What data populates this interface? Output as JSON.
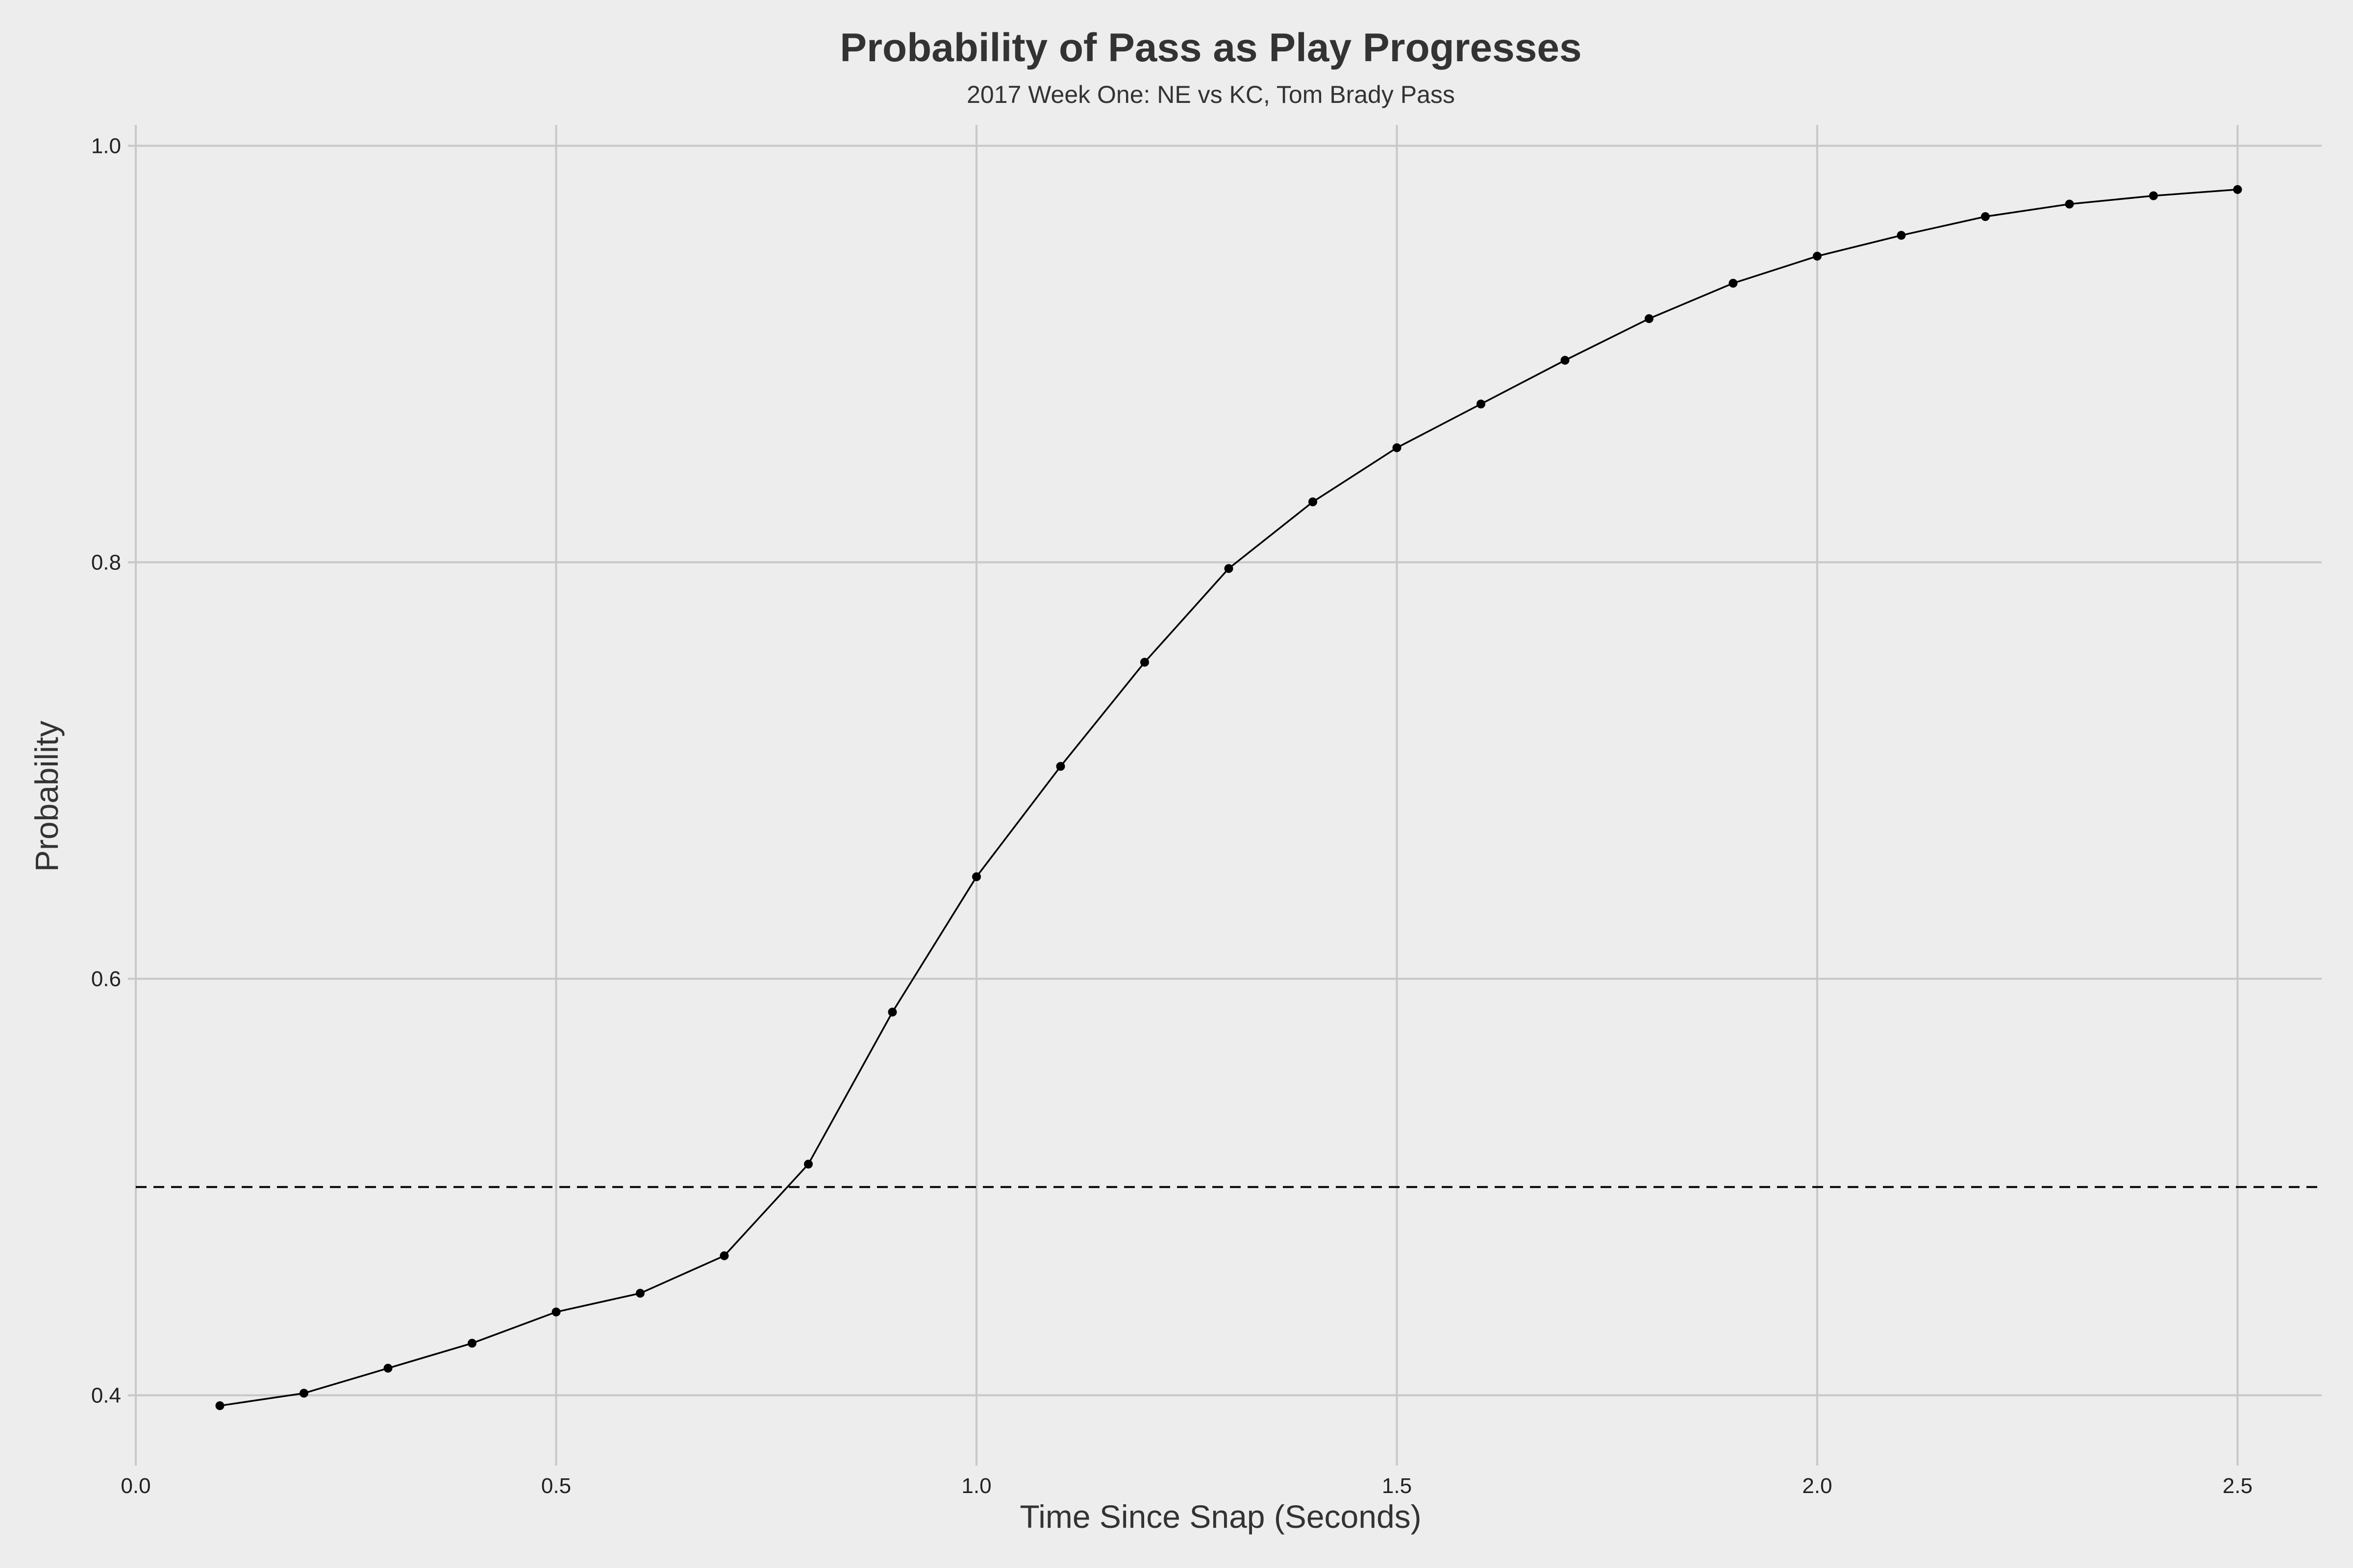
{
  "chart_data": {
    "type": "line",
    "title": "Probability of Pass as Play Progresses",
    "subtitle": "2017 Week One: NE vs KC, Tom Brady Pass",
    "xlabel": "Time Since Snap (Seconds)",
    "ylabel": "Probability",
    "xlim": [
      0.0,
      2.6
    ],
    "ylim": [
      0.37,
      1.01
    ],
    "x_ticks": [
      0.0,
      0.5,
      1.0,
      1.5,
      2.0,
      2.5
    ],
    "x_tick_labels": [
      "0.0",
      "0.5",
      "1.0",
      "1.5",
      "2.0",
      "2.5"
    ],
    "y_ticks": [
      0.4,
      0.6,
      0.8,
      1.0
    ],
    "y_tick_labels": [
      "0.4",
      "0.6",
      "0.8",
      "1.0"
    ],
    "grid": true,
    "reference_line": {
      "y": 0.5,
      "style": "dashed",
      "color": "#000000"
    },
    "series": [
      {
        "color": "#000000",
        "x": [
          0.1,
          0.2,
          0.3,
          0.4,
          0.5,
          0.6,
          0.7,
          0.8,
          0.9,
          1.0,
          1.1,
          1.2,
          1.3,
          1.4,
          1.5,
          1.6,
          1.7,
          1.8,
          1.9,
          2.0,
          2.1,
          2.2,
          2.3,
          2.4,
          2.5
        ],
        "y": [
          0.395,
          0.401,
          0.413,
          0.425,
          0.44,
          0.449,
          0.467,
          0.511,
          0.584,
          0.649,
          0.702,
          0.752,
          0.797,
          0.829,
          0.855,
          0.876,
          0.897,
          0.917,
          0.934,
          0.947,
          0.957,
          0.966,
          0.972,
          0.976,
          0.979
        ]
      }
    ]
  }
}
